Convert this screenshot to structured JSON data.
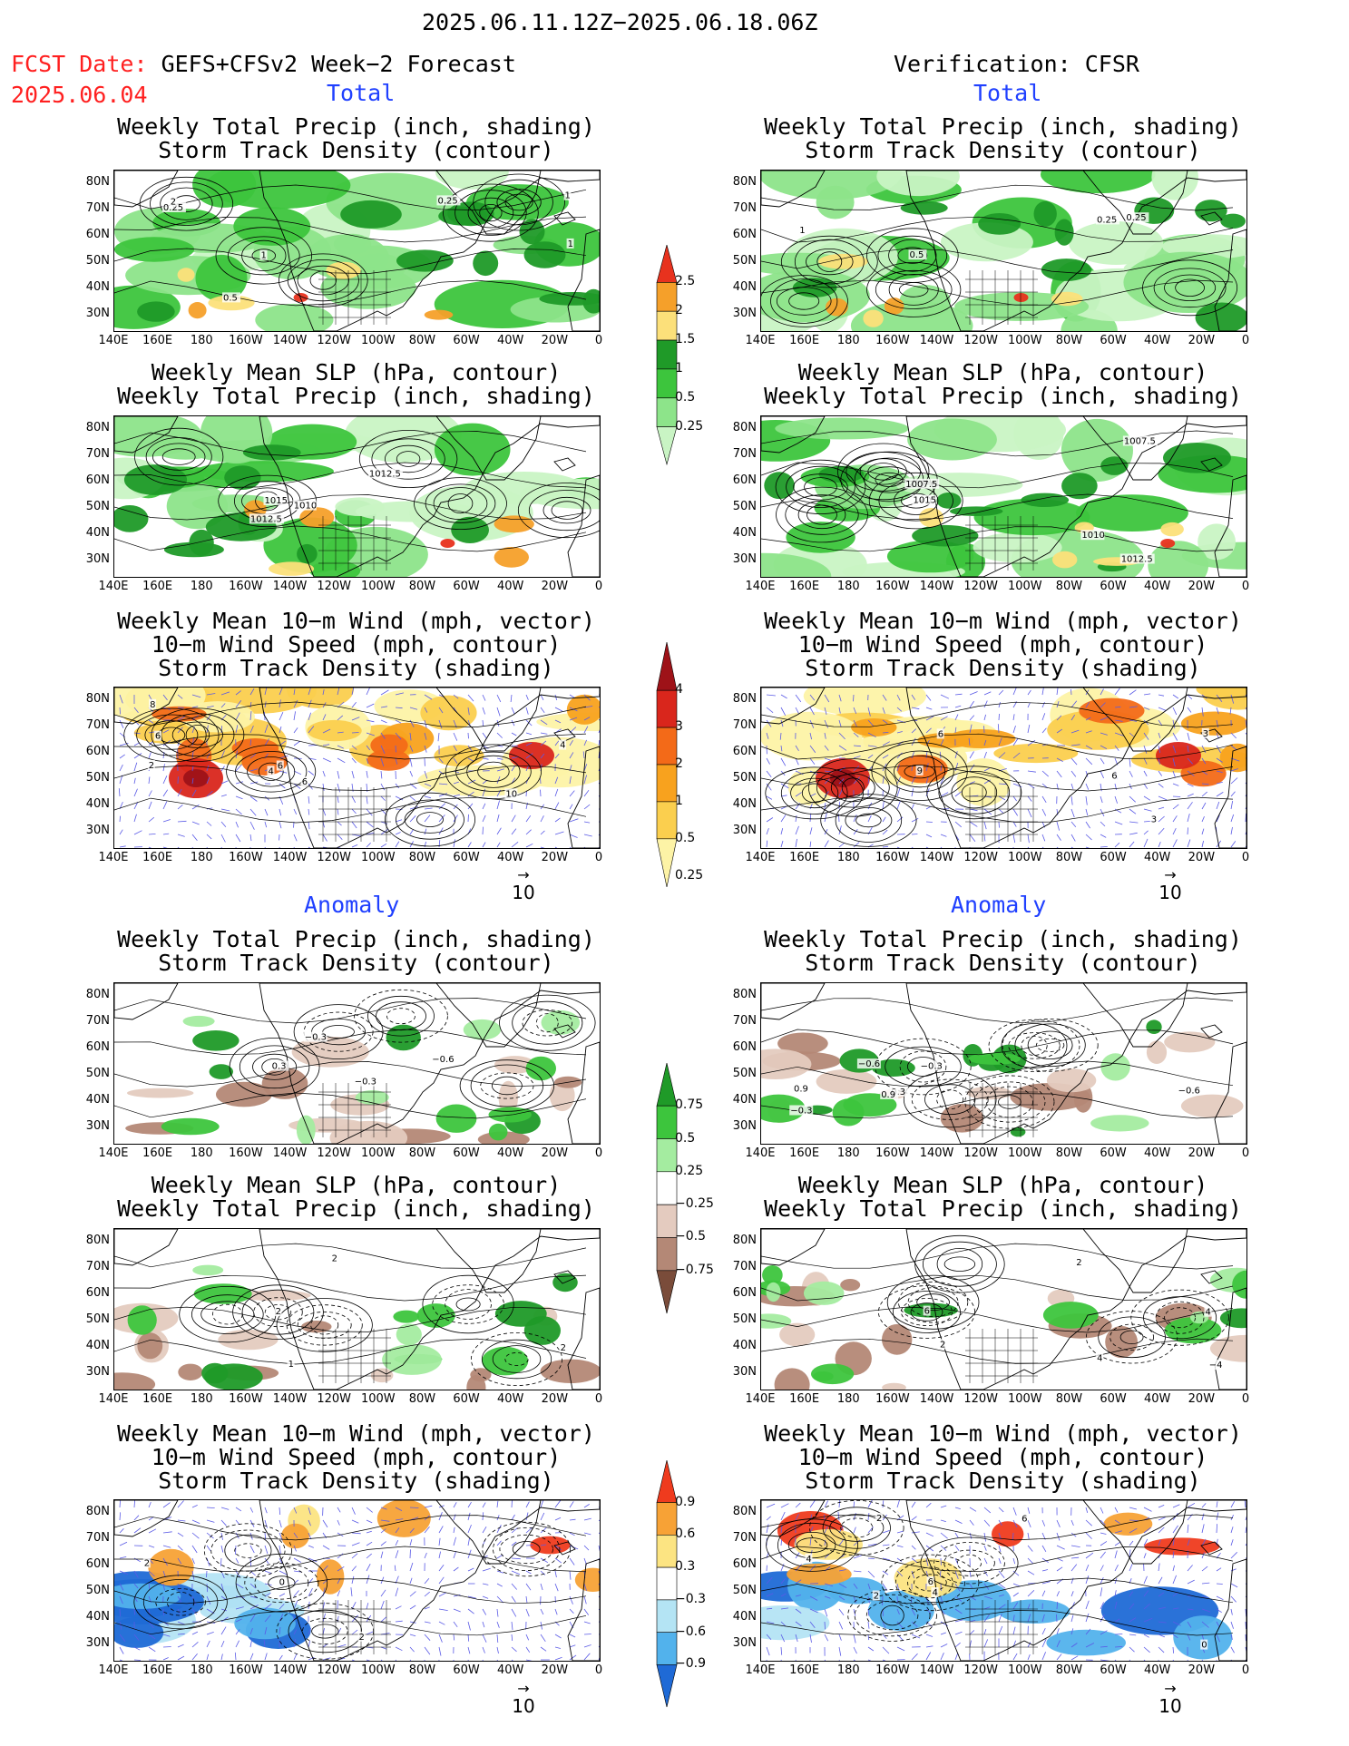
{
  "header": {
    "period": "2025.06.11.12Z−2025.06.18.06Z",
    "fcst_label": "FCST Date:",
    "fcst_date": "2025.06.04",
    "forecast_model": "GEFS+CFSv2 Week−2 Forecast",
    "verification": "Verification: CFSR"
  },
  "sections": {
    "total": "Total",
    "anomaly": "Anomaly"
  },
  "titles": {
    "precip_storm": [
      "Weekly Total Precip (inch, shading)",
      "Storm Track Density (contour)"
    ],
    "slp_precip": [
      "Weekly Mean SLP (hPa, contour)",
      "Weekly Total Precip (inch, shading)"
    ],
    "wind": [
      "Weekly Mean 10−m Wind (mph, vector)",
      "10−m Wind Speed (mph, contour)",
      "Storm Track Density (shading)"
    ]
  },
  "axes": {
    "lat_ticks": [
      "80N",
      "70N",
      "60N",
      "50N",
      "40N",
      "30N"
    ],
    "lon_ticks": [
      "140E",
      "160E",
      "180",
      "160W",
      "140W",
      "120W",
      "100W",
      "80W",
      "60W",
      "40W",
      "20W",
      "0"
    ]
  },
  "vector_ref": "10",
  "colorbars": {
    "precip_total": {
      "labels": [
        "2.5",
        "2",
        "1.5",
        "1",
        "0.5",
        "0.25"
      ],
      "colors": [
        "#e8321e",
        "#f5a02a",
        "#fce07a",
        "#1f9a28",
        "#3dc53d",
        "#8de48a",
        "#c9f4c4"
      ]
    },
    "storm_total": {
      "labels": [
        "4",
        "3",
        "2",
        "1",
        "0.5",
        "0.25"
      ],
      "colors": [
        "#9e1218",
        "#d9261c",
        "#f36a18",
        "#f8a21e",
        "#fbcf4e",
        "#fdf3a6"
      ]
    },
    "precip_anom": {
      "labels": [
        "0.75",
        "0.5",
        "0.25",
        "−0.25",
        "−0.5",
        "−0.75"
      ],
      "colors": [
        "#1f9a28",
        "#3dc53d",
        "#a4eca0",
        "#ffffff",
        "#e4cbbf",
        "#b48876",
        "#7a4c3a"
      ]
    },
    "storm_anom": {
      "labels": [
        "0.9",
        "0.6",
        "0.3",
        "−0.3",
        "−0.6",
        "−0.9"
      ],
      "colors": [
        "#ef3b1e",
        "#f7a236",
        "#fce482",
        "#ffffff",
        "#b4e4f4",
        "#52b2ec",
        "#1f6ad6"
      ]
    }
  },
  "panel_annotations": {
    "fcst_precip_total": [
      "1",
      "0.5",
      "0.25",
      "0.25",
      "1",
      "2",
      "1"
    ],
    "obs_precip_total": [
      "0.5",
      "0.25",
      "1",
      "0.25"
    ],
    "fcst_slp_total": [
      "1015",
      "1012.5",
      "1010",
      "1012.5"
    ],
    "obs_slp_total": [
      "1015",
      "1007.5",
      "1010",
      "1007.5",
      "1012.5"
    ],
    "fcst_wind_total": [
      "4",
      "6",
      "8",
      "2",
      "6",
      "6",
      "4",
      "10"
    ],
    "obs_wind_total": [
      "9",
      "3",
      "6",
      "6",
      "3"
    ],
    "fcst_precip_anom": [
      "0.3",
      "−0.3",
      "−0.6",
      "−0.3"
    ],
    "obs_precip_anom": [
      "−0.3",
      "−0.6",
      "0.9",
      "0.3",
      "−0.6",
      "−0.3",
      "0.9"
    ],
    "fcst_slp_anom": [
      "2",
      "2",
      "1",
      "2"
    ],
    "obs_slp_anom": [
      "6",
      "4",
      "2",
      "4",
      "2",
      "−4"
    ],
    "fcst_wind_anom": [
      "0",
      "2",
      "2"
    ],
    "obs_wind_anom": [
      "6",
      "4",
      "4",
      "2",
      "6",
      "0",
      "2"
    ]
  }
}
